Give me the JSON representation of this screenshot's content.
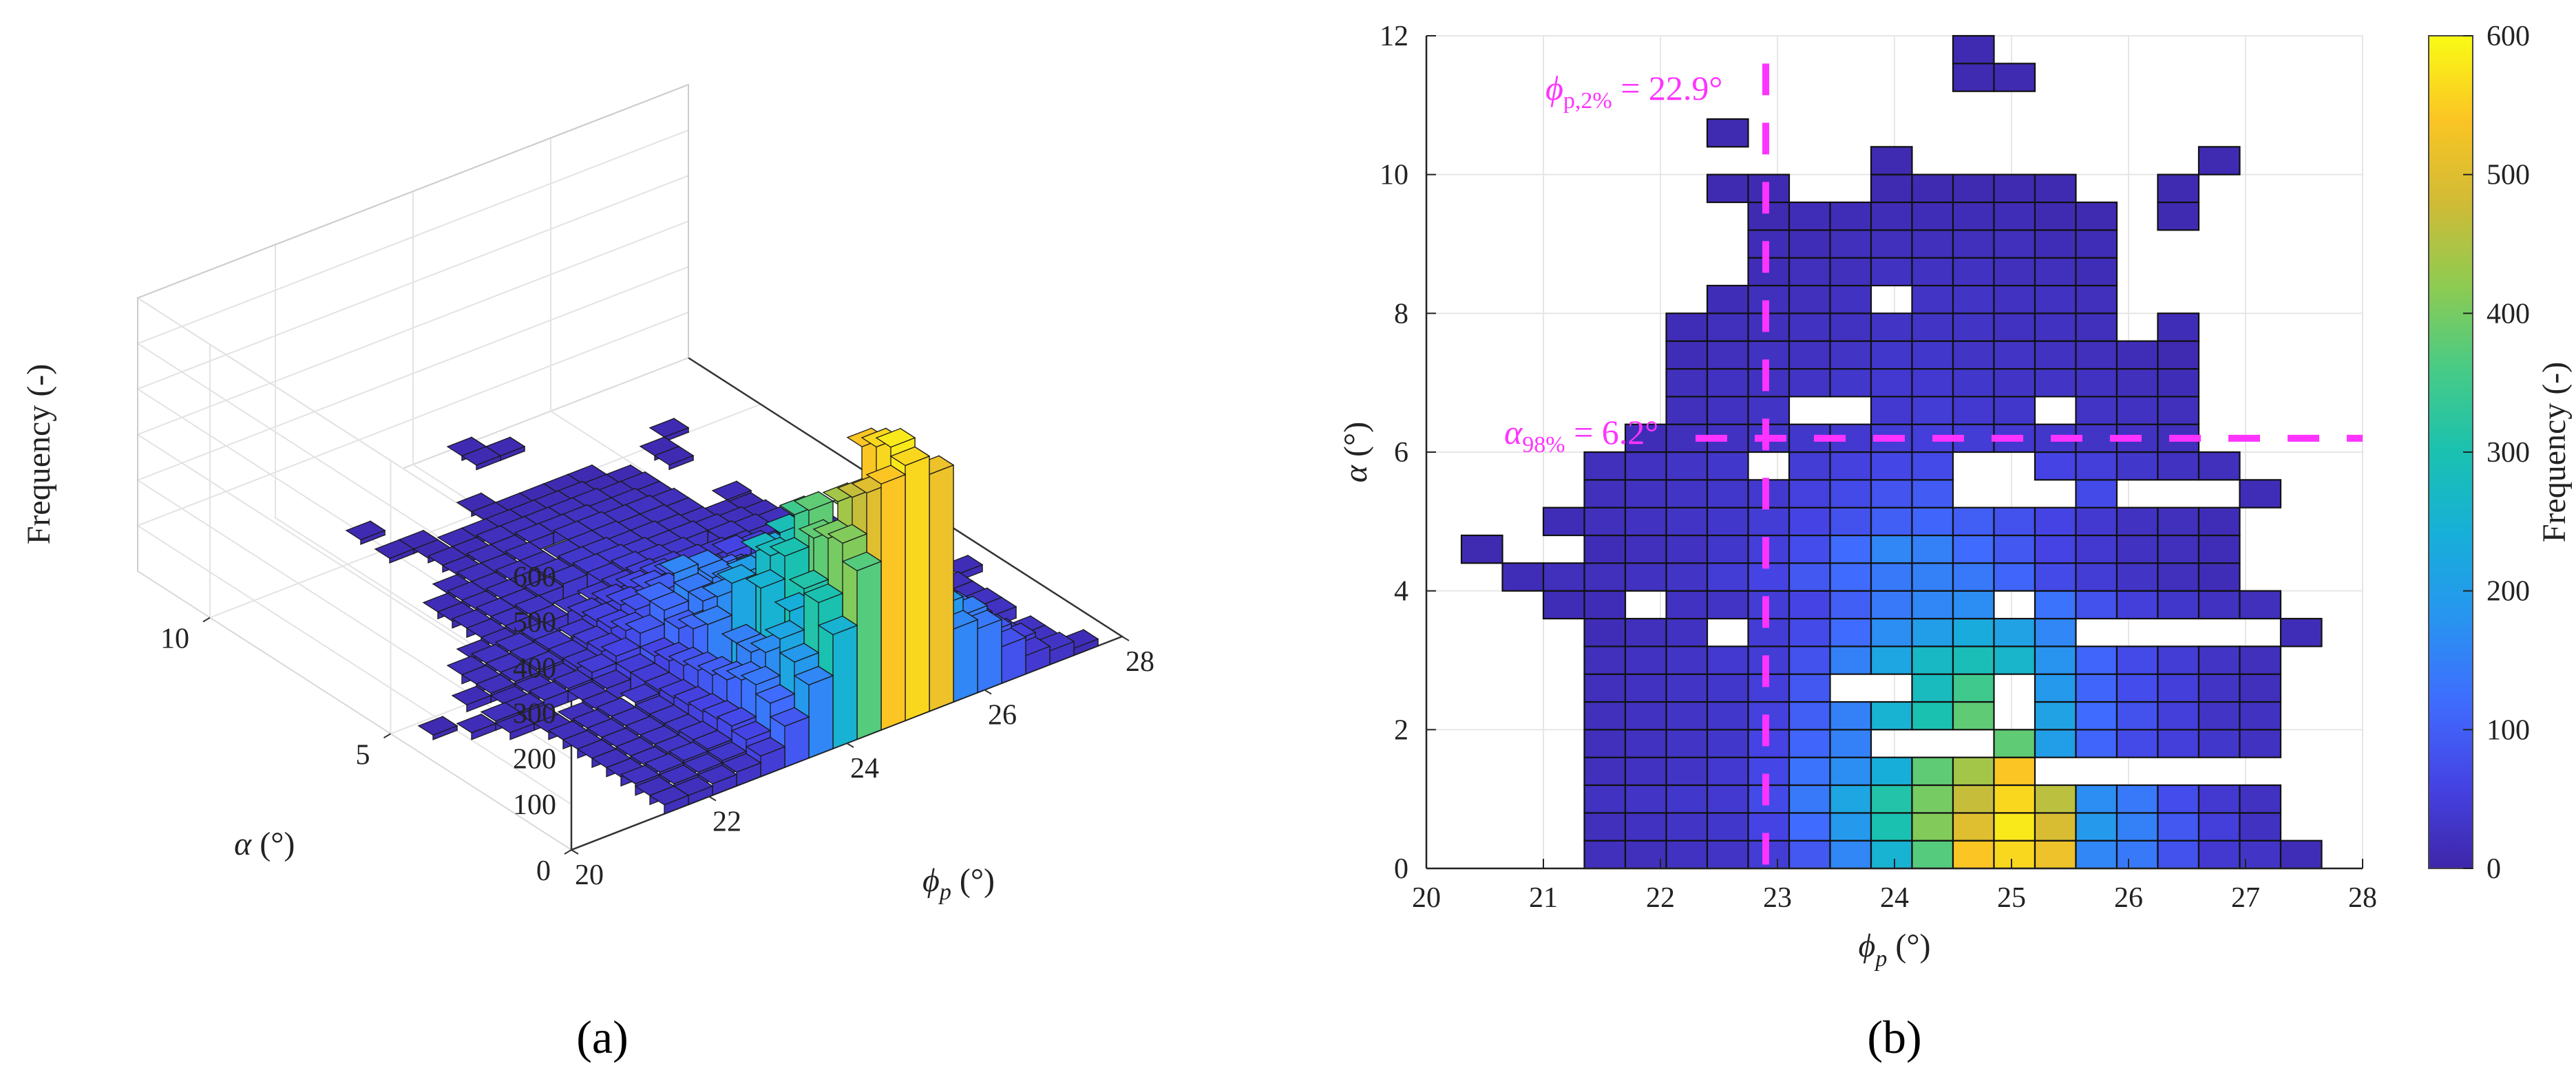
{
  "figure": {
    "panel_a_label": "(a)",
    "panel_b_label": "(b)"
  },
  "chart_data": [
    {
      "type": "bar3d",
      "panel": "a",
      "title": "",
      "zlabel": "Frequency (-)",
      "xlabel": "ϕp (°)",
      "ylabel": "α (°)",
      "xlim": [
        20,
        28
      ],
      "ylim": [
        0,
        12
      ],
      "zlim": [
        0,
        600
      ],
      "x_ticks": [
        "20",
        "22",
        "24",
        "26",
        "28"
      ],
      "y_ticks": [
        "0",
        "5",
        "10"
      ],
      "z_ticks": [
        "100",
        "200",
        "300",
        "400",
        "500",
        "600"
      ],
      "bin_width_x": 0.35,
      "bin_height_y": 0.4,
      "note": "Same 2D histogram as panel (b), rendered as 3D bars"
    },
    {
      "type": "heatmap",
      "panel": "b",
      "title": "",
      "xlabel": "ϕp (°)",
      "ylabel": "α (°)",
      "xlim": [
        20,
        28
      ],
      "ylim": [
        0,
        12
      ],
      "x_ticks": [
        "20",
        "21",
        "22",
        "23",
        "24",
        "25",
        "26",
        "27",
        "28"
      ],
      "y_ticks": [
        "0",
        "2",
        "4",
        "6",
        "8",
        "10",
        "12"
      ],
      "colorbar_label": "Frequency (-)",
      "colorbar_range": [
        0,
        600
      ],
      "colorbar_ticks": [
        "0",
        "100",
        "200",
        "300",
        "400",
        "500",
        "600"
      ],
      "x_bin_edges_start": 21.35,
      "bin_width_x": 0.35,
      "bin_height_y": 0.4,
      "grid": true,
      "reference_lines": [
        {
          "orientation": "vertical",
          "value": 22.9,
          "label": "ϕp,2% = 22.9°"
        },
        {
          "orientation": "horizontal",
          "value": 6.2,
          "label": "α98% = 6.2°"
        }
      ],
      "rows_description": "each row: y bin start, first column index, frequency values (null = empty bin)",
      "rows": [
        {
          "y": 0.0,
          "c0": 0,
          "v": [
            20,
            20,
            25,
            30,
            45,
            90,
            160,
            250,
            370,
            540,
            560,
            520,
            160,
            140,
            80,
            40,
            30,
            15
          ]
        },
        {
          "y": 0.4,
          "c0": 0,
          "v": [
            20,
            25,
            30,
            35,
            60,
            120,
            190,
            300,
            410,
            500,
            580,
            490,
            190,
            150,
            90,
            50,
            25
          ]
        },
        {
          "y": 0.8,
          "c0": 0,
          "v": [
            25,
            30,
            35,
            40,
            70,
            140,
            220,
            310,
            400,
            470,
            560,
            460,
            170,
            140,
            75,
            40,
            25
          ]
        },
        {
          "y": 1.2,
          "c0": 0,
          "v": [
            20,
            25,
            30,
            40,
            65,
            130,
            170,
            240,
            380,
            440,
            540,
            null,
            null,
            null,
            null,
            null,
            null
          ]
        },
        {
          "y": 1.6,
          "c0": 0,
          "v": [
            20,
            25,
            30,
            35,
            60,
            110,
            150,
            null,
            null,
            null,
            380,
            200,
            110,
            70,
            50,
            35,
            25
          ]
        },
        {
          "y": 2.0,
          "c0": 0,
          "v": [
            20,
            25,
            30,
            35,
            55,
            100,
            150,
            250,
            300,
            380,
            null,
            210,
            120,
            80,
            50,
            30,
            25
          ]
        },
        {
          "y": 2.4,
          "c0": 0,
          "v": [
            20,
            25,
            30,
            35,
            50,
            90,
            null,
            null,
            280,
            350,
            null,
            190,
            110,
            75,
            50,
            30,
            20
          ]
        },
        {
          "y": 2.8,
          "c0": 0,
          "v": [
            20,
            25,
            30,
            40,
            45,
            80,
            150,
            220,
            270,
            290,
            260,
            180,
            110,
            70,
            45,
            30,
            20
          ]
        },
        {
          "y": 3.2,
          "c0": 0,
          "v": [
            15,
            20,
            25,
            null,
            45,
            70,
            120,
            170,
            200,
            230,
            210,
            160,
            null,
            null,
            null,
            null,
            null,
            15
          ]
        },
        {
          "y": 3.6,
          "c0": -1,
          "v": [
            15,
            15,
            null,
            25,
            30,
            45,
            60,
            100,
            140,
            160,
            170,
            null,
            130,
            80,
            50,
            35,
            25,
            20
          ]
        },
        {
          "y": 4.0,
          "c0": -2,
          "v": [
            15,
            20,
            20,
            25,
            30,
            45,
            60,
            90,
            120,
            140,
            150,
            140,
            110,
            70,
            45,
            30,
            20,
            15
          ]
        },
        {
          "y": 4.4,
          "c0": -3,
          "v": [
            10,
            null,
            null,
            15,
            20,
            25,
            35,
            50,
            75,
            120,
            160,
            150,
            120,
            90,
            60,
            40,
            25,
            20,
            15
          ]
        },
        {
          "y": 4.8,
          "c0": -1,
          "v": [
            15,
            20,
            25,
            30,
            35,
            45,
            60,
            80,
            100,
            110,
            100,
            80,
            60,
            40,
            25,
            20,
            15
          ]
        },
        {
          "y": 5.2,
          "c0": 0,
          "v": [
            20,
            25,
            30,
            35,
            40,
            55,
            70,
            85,
            95,
            null,
            null,
            null,
            70,
            null,
            null,
            null,
            15
          ]
        },
        {
          "y": 5.6,
          "c0": 0,
          "v": [
            20,
            25,
            30,
            35,
            null,
            45,
            55,
            65,
            70,
            null,
            null,
            60,
            50,
            35,
            25,
            20
          ]
        },
        {
          "y": 6.0,
          "c0": 1,
          "v": [
            15,
            20,
            25,
            30,
            35,
            40,
            45,
            50,
            45,
            40,
            35,
            30,
            25,
            20
          ]
        },
        {
          "y": 6.4,
          "c0": 2,
          "v": [
            20,
            25,
            30,
            null,
            null,
            40,
            45,
            40,
            35,
            null,
            30,
            25,
            20
          ]
        },
        {
          "y": 6.8,
          "c0": 2,
          "v": [
            20,
            25,
            25,
            30,
            35,
            40,
            40,
            35,
            30,
            30,
            25,
            20,
            15
          ]
        },
        {
          "y": 7.2,
          "c0": 2,
          "v": [
            15,
            20,
            25,
            25,
            30,
            35,
            35,
            30,
            30,
            25,
            20,
            15,
            10
          ]
        },
        {
          "y": 7.6,
          "c0": 2,
          "v": [
            15,
            20,
            20,
            25,
            25,
            30,
            30,
            30,
            25,
            25,
            20,
            null,
            15
          ]
        },
        {
          "y": 8.0,
          "c0": 3,
          "v": [
            15,
            20,
            20,
            25,
            null,
            30,
            30,
            25,
            25,
            20,
            null
          ]
        },
        {
          "y": 8.4,
          "c0": 4,
          "v": [
            15,
            20,
            20,
            25,
            25,
            25,
            20,
            20,
            15
          ]
        },
        {
          "y": 8.8,
          "c0": 4,
          "v": [
            15,
            15,
            20,
            20,
            20,
            20,
            20,
            15,
            15
          ]
        },
        {
          "y": 9.2,
          "c0": 4,
          "v": [
            10,
            15,
            15,
            15,
            15,
            15,
            15,
            10,
            10,
            null,
            10
          ]
        },
        {
          "y": 9.6,
          "c0": 3,
          "v": [
            10,
            10,
            null,
            null,
            10,
            10,
            10,
            10,
            10,
            null,
            null,
            10
          ]
        },
        {
          "y": 10.0,
          "c0": 7,
          "v": [
            10,
            null,
            null,
            null,
            null,
            null,
            null,
            null,
            10
          ]
        },
        {
          "y": 10.4,
          "c0": 3,
          "v": [
            10
          ]
        },
        {
          "y": 11.2,
          "c0": 9,
          "v": [
            10,
            10
          ]
        },
        {
          "y": 11.6,
          "c0": 9,
          "v": [
            10
          ]
        }
      ]
    }
  ]
}
